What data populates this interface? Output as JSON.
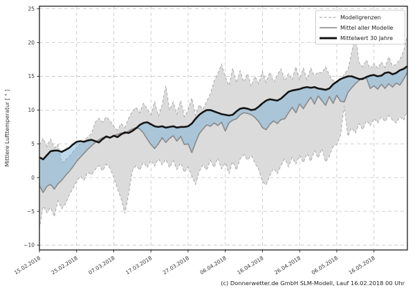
{
  "caption": "(c) Donnerwetter.de GmbH SLM-Modell, Lauf 16.02.2018 00 Uhr",
  "colors": {
    "background": "#ffffff",
    "band_fill": "#dbdbdb",
    "boundary_line": "#a8a8a8",
    "blue_fill": "rgba(110,170,210,0.45)",
    "salmon_fill": "rgba(225,105,75,0.42)",
    "model_mean_line": "#8c8c8c",
    "climate_mean_line": "#141414",
    "grid": "#c9c9c9",
    "frame": "#2b2b2b",
    "text": "#333333"
  },
  "chart_data": {
    "type": "line",
    "title": "",
    "xlabel": "",
    "ylabel": "Mittlere Lufttemperatur [ ° ]",
    "ylim": [
      -10,
      25
    ],
    "y_ticks": [
      25,
      20,
      15,
      10,
      5,
      0,
      -5,
      -10
    ],
    "grid": true,
    "legend_position": "top-right",
    "legend": [
      {
        "label": "Modellgrenzen",
        "style": "dashed-gray"
      },
      {
        "label": "Mittel aller Modelle",
        "style": "solid-gray"
      },
      {
        "label": "Mittelwert 30 Jahre",
        "style": "solid-black-thick"
      }
    ],
    "x_ticks": [
      {
        "label": "15.02.2018",
        "day": 0
      },
      {
        "label": "25.02.2018",
        "day": 10
      },
      {
        "label": "07.03.2018",
        "day": 20
      },
      {
        "label": "17.03.2018",
        "day": 30
      },
      {
        "label": "27.03.2018",
        "day": 40
      },
      {
        "label": "06.04.2018",
        "day": 50
      },
      {
        "label": "16.04.2018",
        "day": 60
      },
      {
        "label": "26.04.2018",
        "day": 70
      },
      {
        "label": "06.05.2018",
        "day": 80
      },
      {
        "label": "16.05.2018",
        "day": 90
      }
    ],
    "x_unit": "day index from 15.02.2018, daily values",
    "series": [
      {
        "name": "Modellgrenzen (obere Grenze)",
        "role": "band-upper",
        "values": [
          4.8,
          5.8,
          4.6,
          5.7,
          4.4,
          4.9,
          2.2,
          2.6,
          3.1,
          3.8,
          4.4,
          5.0,
          5.5,
          6.0,
          6.5,
          8.2,
          8.8,
          8.2,
          9.0,
          8.4,
          7.6,
          7.0,
          8.0,
          7.4,
          8.8,
          9.8,
          10.4,
          9.6,
          11.0,
          10.2,
          9.3,
          11.2,
          9.1,
          10.7,
          13.6,
          10.0,
          11.2,
          9.4,
          11.4,
          9.0,
          10.0,
          11.8,
          9.2,
          10.8,
          10.1,
          11.3,
          12.4,
          14.3,
          15.4,
          16.8,
          14.9,
          13.6,
          16.2,
          14.0,
          15.8,
          14.1,
          15.4,
          13.5,
          15.0,
          13.9,
          15.7,
          14.1,
          15.6,
          14.1,
          15.2,
          16.1,
          14.3,
          15.4,
          14.5,
          16.4,
          14.5,
          16.2,
          14.5,
          16.2,
          15.1,
          15.6,
          15.5,
          16.4,
          15.2,
          14.4,
          14.0,
          14.3,
          15.3,
          16.0,
          18.5,
          21.2,
          17.0,
          16.4,
          17.4,
          16.1,
          16.9,
          16.2,
          17.1,
          16.3,
          17.9,
          16.5,
          16.8,
          17.5,
          18.8,
          21.0
        ]
      },
      {
        "name": "Modellgrenzen (untere Grenze)",
        "role": "band-lower",
        "values": [
          -7.6,
          -4.2,
          -5.2,
          -4.4,
          -5.8,
          -3.4,
          -4.6,
          -3.9,
          -2.6,
          -1.6,
          -0.6,
          0.2,
          -0.4,
          0.8,
          0.4,
          1.2,
          1.8,
          1.0,
          2.0,
          1.4,
          0.0,
          -1.6,
          -3.2,
          -5.3,
          -2.4,
          1.0,
          1.8,
          1.1,
          2.3,
          1.5,
          2.6,
          1.7,
          2.8,
          1.9,
          2.7,
          1.5,
          2.5,
          1.2,
          2.2,
          0.8,
          1.6,
          0.2,
          -1.0,
          0.9,
          1.9,
          1.1,
          2.6,
          1.5,
          2.9,
          1.3,
          2.2,
          0.6,
          2.4,
          1.1,
          2.8,
          3.4,
          2.6,
          3.3,
          2.1,
          1.2,
          -0.6,
          -1.1,
          0.3,
          1.4,
          0.6,
          1.8,
          2.8,
          1.6,
          3.0,
          2.0,
          3.3,
          2.2,
          3.6,
          2.4,
          4.0,
          2.9,
          4.3,
          2.3,
          3.2,
          4.6,
          4.9,
          6.2,
          10.6,
          6.1,
          7.4,
          6.6,
          8.0,
          7.1,
          8.5,
          7.7,
          8.8,
          8.1,
          9.0,
          8.3,
          9.2,
          8.5,
          8.1,
          9.0,
          8.5,
          9.9
        ]
      },
      {
        "name": "Mittel aller Modelle",
        "role": "model-mean",
        "values": [
          -1.2,
          -2.2,
          -1.3,
          -1.0,
          -1.7,
          -0.9,
          -0.4,
          0.3,
          0.9,
          1.6,
          2.4,
          3.0,
          3.6,
          4.2,
          4.7,
          5.2,
          5.6,
          5.9,
          6.1,
          5.9,
          6.2,
          6.4,
          6.6,
          6.5,
          6.9,
          7.2,
          7.4,
          7.2,
          6.6,
          5.7,
          4.9,
          4.3,
          5.0,
          5.9,
          5.2,
          5.8,
          6.2,
          5.4,
          6.1,
          4.9,
          5.0,
          3.7,
          5.2,
          6.5,
          7.2,
          7.8,
          7.6,
          8.1,
          7.7,
          8.2,
          6.9,
          8.1,
          8.5,
          8.7,
          9.3,
          9.6,
          9.5,
          9.3,
          8.9,
          8.3,
          7.4,
          7.1,
          7.9,
          8.4,
          8.0,
          8.6,
          8.7,
          9.6,
          10.4,
          9.6,
          10.9,
          10.2,
          11.1,
          11.9,
          10.9,
          12.1,
          11.4,
          10.7,
          12.0,
          11.0,
          12.2,
          11.3,
          11.2,
          12.6,
          13.3,
          13.9,
          14.4,
          14.8,
          14.7,
          13.2,
          13.6,
          13.1,
          13.8,
          13.2,
          13.9,
          13.4,
          14.0,
          13.7,
          14.6,
          15.6
        ]
      },
      {
        "name": "Mittelwert 30 Jahre",
        "role": "climate-mean",
        "values": [
          3.0,
          2.7,
          3.3,
          3.9,
          4.0,
          4.0,
          3.8,
          4.1,
          4.4,
          4.9,
          5.3,
          5.4,
          5.3,
          5.5,
          5.6,
          5.4,
          5.2,
          5.7,
          6.1,
          5.9,
          6.2,
          6.0,
          6.4,
          6.7,
          6.6,
          6.9,
          7.3,
          7.8,
          8.1,
          8.2,
          7.9,
          7.6,
          7.5,
          7.6,
          7.4,
          7.5,
          7.6,
          7.4,
          7.5,
          7.5,
          7.6,
          8.0,
          8.7,
          9.3,
          9.7,
          10.0,
          10.0,
          9.8,
          9.6,
          9.4,
          9.3,
          9.2,
          9.3,
          9.8,
          10.2,
          10.3,
          10.2,
          10.0,
          10.1,
          10.5,
          11.0,
          11.4,
          11.6,
          11.5,
          11.4,
          11.7,
          12.2,
          12.7,
          12.9,
          13.0,
          13.1,
          13.3,
          13.4,
          13.3,
          13.4,
          13.2,
          13.1,
          13.0,
          13.2,
          13.8,
          14.2,
          14.6,
          14.8,
          15.0,
          15.0,
          14.8,
          14.6,
          14.6,
          14.9,
          15.1,
          15.2,
          15.0,
          15.1,
          15.5,
          15.6,
          15.3,
          15.5,
          15.9,
          16.1,
          16.5
        ]
      }
    ],
    "fills": [
      {
        "name": "Modellgrenzen-Band",
        "between": [
          "band-upper",
          "band-lower"
        ],
        "color_key": "band_fill"
      },
      {
        "name": "Modelle kälter als 30-Jahre-Mittel",
        "between": [
          "climate-mean",
          "model-mean"
        ],
        "when": "climate > model",
        "color_key": "blue_fill"
      },
      {
        "name": "Modelle wärmer als 30-Jahre-Mittel",
        "between": [
          "model-mean",
          "climate-mean"
        ],
        "when": "model > climate",
        "color_key": "salmon_fill"
      }
    ]
  }
}
